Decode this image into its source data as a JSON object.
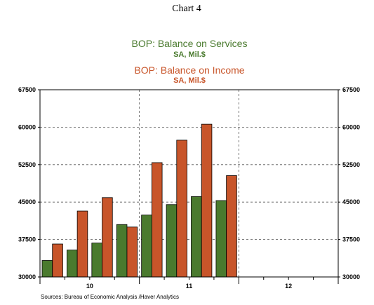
{
  "page_title": "Chart 4",
  "source_note": "Sources:  Bureau of Economic Analysis /Haver Analytics",
  "colors": {
    "services": "#4a7a2e",
    "income": "#c8552a",
    "bar_stroke": "#000000",
    "grid": "#555555"
  },
  "chart_data": {
    "type": "bar",
    "legend_placement": "top-center",
    "grid": true,
    "ylim": [
      30000,
      67500
    ],
    "yticks": [
      30000,
      37500,
      45000,
      52500,
      60000,
      67500
    ],
    "ytick_labels": [
      "30000",
      "37500",
      "45000",
      "52500",
      "60000",
      "67500"
    ],
    "x_year_labels": [
      "10",
      "11",
      "12"
    ],
    "quarters_per_year": 4,
    "years_on_axis": 3,
    "quarter_slots_with_data": 8,
    "series": [
      {
        "name": "BOP: Balance on Services",
        "unit": "SA, Mil.$",
        "values": [
          33300,
          35400,
          36800,
          40500,
          42400,
          44500,
          46100,
          45300
        ]
      },
      {
        "name": "BOP: Balance on Income",
        "unit": "SA, Mil.$",
        "values": [
          36600,
          43200,
          45900,
          40000,
          52900,
          57400,
          60600,
          50300
        ]
      }
    ]
  }
}
